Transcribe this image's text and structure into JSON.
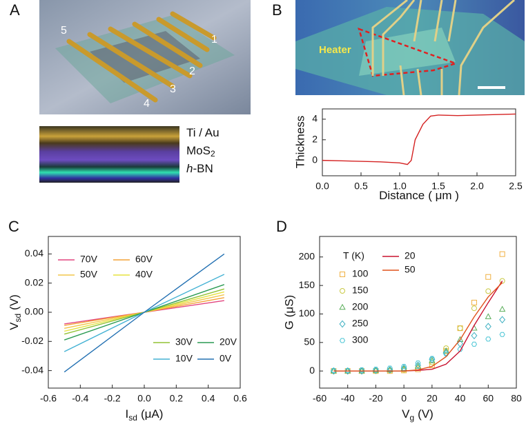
{
  "panel_a": {
    "label": "A",
    "electrodes": [
      "5",
      "1",
      "2",
      "3",
      "4"
    ],
    "layers": [
      {
        "text": "Ti / Au"
      },
      {
        "text": "MoS",
        "sub": "2"
      },
      {
        "italic": "h",
        "text": "-BN"
      }
    ]
  },
  "panel_b_image": {
    "heater": "Heater"
  },
  "chart_data": [
    {
      "type": "line",
      "panel": "B",
      "xlabel": {
        "text": "Distance",
        "unit": "( μm )"
      },
      "ylabel": "Thickness",
      "x": [
        0,
        0.25,
        0.5,
        0.75,
        1.0,
        1.1,
        1.15,
        1.2,
        1.3,
        1.4,
        1.5,
        1.75,
        2.0,
        2.25,
        2.5
      ],
      "values": [
        0,
        -0.05,
        -0.1,
        -0.15,
        -0.25,
        -0.4,
        0,
        2,
        3.5,
        4.3,
        4.4,
        4.35,
        4.4,
        4.45,
        4.5
      ],
      "color": "#d42020",
      "xlim": [
        0,
        2.5
      ],
      "ylim": [
        -1.5,
        5
      ],
      "xticks": [
        {
          "value": 0,
          "label": "0.0"
        },
        0.5,
        {
          "value": 1,
          "label": "1.0"
        },
        1.5,
        {
          "value": 2,
          "label": "2.0"
        },
        2.5
      ],
      "yticks": [
        0,
        2,
        4
      ]
    },
    {
      "type": "line",
      "panel": "C",
      "xlabel": {
        "text": "I",
        "sub": "sd",
        "unit": "(μA)"
      },
      "ylabel": {
        "text": "V",
        "sub": "sd",
        "unit": "(V)"
      },
      "x": [
        -0.5,
        0,
        0.5
      ],
      "series": [
        {
          "name": "70V",
          "color": "#e2447e",
          "values": [
            -0.008,
            0,
            0.008
          ]
        },
        {
          "name": "60V",
          "color": "#f4a236",
          "values": [
            -0.009,
            0,
            0.01
          ]
        },
        {
          "name": "50V",
          "color": "#f2c64a",
          "values": [
            -0.011,
            0,
            0.012
          ]
        },
        {
          "name": "40V",
          "color": "#e6e23e",
          "values": [
            -0.013,
            0,
            0.014
          ]
        },
        {
          "name": "30V",
          "color": "#92c234",
          "values": [
            -0.015,
            0,
            0.016
          ]
        },
        {
          "name": "20V",
          "color": "#2a9a52",
          "values": [
            -0.019,
            0,
            0.019
          ]
        },
        {
          "name": "10V",
          "color": "#44b2d4",
          "values": [
            -0.027,
            0,
            0.026
          ]
        },
        {
          "name": "0V",
          "color": "#2270b2",
          "values": [
            -0.041,
            0,
            0.04
          ]
        }
      ],
      "xlim": [
        -0.6,
        0.6
      ],
      "ylim": [
        -0.052,
        0.052
      ],
      "xticks": [
        -0.6,
        -0.4,
        -0.2,
        {
          "value": 0,
          "label": "0.0"
        },
        0.2,
        0.4,
        0.6
      ],
      "yticks": [
        -0.04,
        -0.02,
        {
          "value": 0,
          "label": "0.00"
        },
        0.02,
        0.04
      ]
    },
    {
      "type": "line",
      "panel": "D",
      "xlabel": {
        "text": "V",
        "sub": "g",
        "unit": "(V)"
      },
      "ylabel": "G (μS)",
      "legend_title": "T (K)",
      "x": [
        -50,
        -40,
        -30,
        -20,
        -10,
        0,
        10,
        20,
        30,
        40,
        50,
        60,
        70
      ],
      "series": [
        {
          "name": "100",
          "color": "#f0b040",
          "marker": "square",
          "values": [
            0,
            0,
            0,
            0,
            0,
            1,
            3,
            10,
            35,
            75,
            120,
            165,
            205
          ]
        },
        {
          "name": "150",
          "color": "#c8c840",
          "marker": "circle",
          "values": [
            0,
            0,
            0,
            0,
            1,
            2,
            5,
            15,
            40,
            75,
            110,
            140,
            158
          ]
        },
        {
          "name": "200",
          "color": "#5aae5a",
          "marker": "triangle",
          "values": [
            0,
            0,
            0,
            1,
            2,
            4,
            8,
            18,
            35,
            55,
            75,
            95,
            108
          ]
        },
        {
          "name": "250",
          "color": "#3eb0c2",
          "marker": "diamond",
          "values": [
            0,
            0,
            0,
            1,
            2,
            5,
            10,
            20,
            32,
            48,
            62,
            78,
            90
          ]
        },
        {
          "name": "300",
          "color": "#48c4d4",
          "marker": "hexagon",
          "values": [
            1,
            1,
            2,
            3,
            5,
            8,
            14,
            22,
            30,
            38,
            47,
            56,
            64
          ]
        },
        {
          "name": "20",
          "color": "#c8102e",
          "values": [
            0,
            0,
            0,
            0,
            0,
            0,
            1,
            3,
            12,
            35,
            80,
            120,
            158
          ]
        },
        {
          "name": "50",
          "color": "#e0501a",
          "values": [
            0,
            0,
            0,
            0,
            0,
            0,
            2,
            8,
            25,
            55,
            95,
            130,
            155
          ]
        }
      ],
      "xlim": [
        -60,
        80
      ],
      "ylim": [
        -30,
        236
      ],
      "xticks": [
        -60,
        -40,
        -20,
        0,
        20,
        40,
        60,
        80
      ],
      "yticks": [
        0,
        50,
        100,
        150,
        200
      ]
    }
  ]
}
